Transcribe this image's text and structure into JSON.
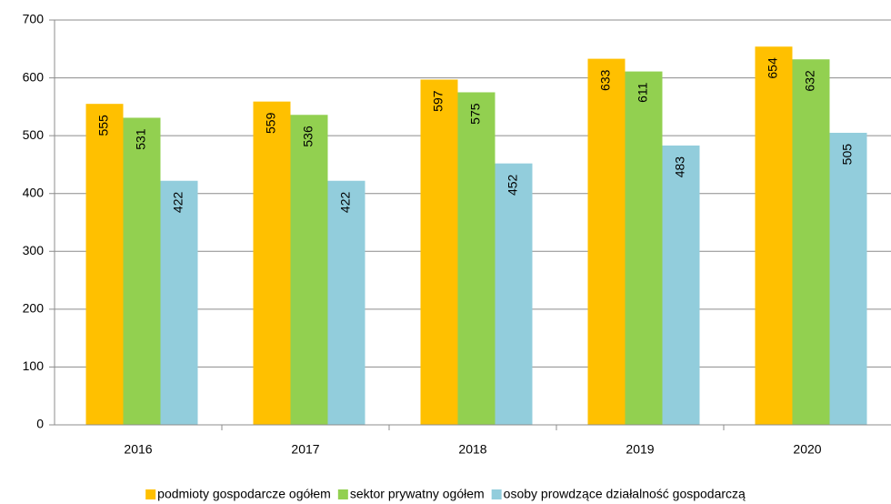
{
  "chart_data": {
    "type": "bar",
    "categories": [
      "2016",
      "2017",
      "2018",
      "2019",
      "2020"
    ],
    "series": [
      {
        "name": "podmioty gospodarcze ogółem",
        "color": "#ffc000",
        "values": [
          555,
          559,
          597,
          633,
          654
        ]
      },
      {
        "name": "sektor prywatny ogółem",
        "color": "#92d050",
        "values": [
          531,
          536,
          575,
          611,
          632
        ]
      },
      {
        "name": "osoby prowdzące działalność gospodarczą",
        "color": "#92cddc",
        "values": [
          422,
          422,
          452,
          483,
          505
        ]
      }
    ],
    "ylim": [
      0,
      700
    ],
    "yticks": [
      0,
      100,
      200,
      300,
      400,
      500,
      600,
      700
    ],
    "grid": true,
    "legend": "bottom"
  }
}
